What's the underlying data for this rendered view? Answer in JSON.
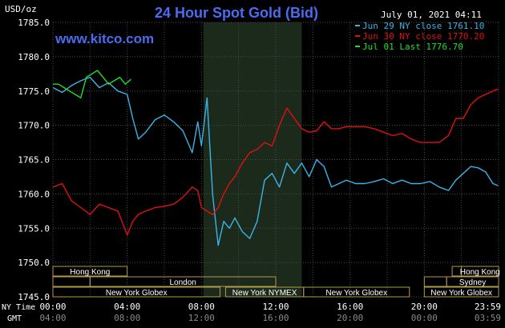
{
  "header": {
    "unit": "USD/oz",
    "title": "24 Hour Spot Gold (Bid)",
    "timestamp": "July 01, 2021 04:11",
    "watermark": "www.kitco.com"
  },
  "legend": [
    {
      "text": "Jun 29 NY close 1761.10",
      "color": "#3ab4e6"
    },
    {
      "text": "Jun 30 NY close 1770.20",
      "color": "#e01010"
    },
    {
      "text": "Jul 01 Last 1776.70",
      "color": "#22dd22"
    }
  ],
  "colors": {
    "background": "#000000",
    "grid": "#4a4a4a",
    "axis_text": "#ffffff",
    "title": "#4a6cf0",
    "watermark": "#4a6cf0",
    "highlight_band": "#1c2a1c",
    "session_box": "#b39a4c",
    "session_text": "#ffffff"
  },
  "sessions": [
    {
      "label": "Hong Kong",
      "row": 0,
      "start": 0,
      "end": 4
    },
    {
      "label": "London",
      "row": 1,
      "start": 2,
      "end": 12
    },
    {
      "label": "New York Globex",
      "row": 2,
      "start": 0,
      "end": 9
    },
    {
      "label": "New York NYMEX",
      "row": 2,
      "start": 9.3,
      "end": 13.5
    },
    {
      "label": "New York Globex",
      "row": 2,
      "start": 13.5,
      "end": 19.2
    },
    {
      "label": "Hong Kong",
      "row": 0,
      "start": 22,
      "end": 24
    },
    {
      "label": "Sydney",
      "row": 1,
      "start": 21.2,
      "end": 24
    },
    {
      "label": "New York Globex",
      "row": 2,
      "start": 20,
      "end": 24
    }
  ],
  "extra_boxes": [
    {
      "row": 1,
      "start": 0,
      "end": 2
    },
    {
      "row": 0,
      "start": 21.5,
      "end": 24
    },
    {
      "row": 1,
      "start": 20,
      "end": 21.2
    }
  ],
  "x_axis": {
    "ny_label": "NY Time",
    "gmt_label": "GMT",
    "ny_ticks": [
      "00:00",
      "04:00",
      "08:00",
      "12:00",
      "16:00",
      "20:00",
      "23:59"
    ],
    "gmt_ticks": [
      "04:00",
      "08:00",
      "12:00",
      "16:00",
      "20:00",
      "00:00",
      "03:59"
    ]
  },
  "chart_data": {
    "type": "line",
    "title": "24 Hour Spot Gold (Bid)",
    "ylabel": "USD/oz",
    "ylim": [
      1745,
      1785
    ],
    "yticks": [
      1745,
      1750,
      1755,
      1760,
      1765,
      1770,
      1775,
      1780,
      1785
    ],
    "ytick_labels": [
      "1745.0",
      "1750.0",
      "1755.0",
      "1760.0",
      "1765.0",
      "1770.0",
      "1775.0",
      "1780.0",
      "1785.0"
    ],
    "xlim_hours": [
      0,
      24
    ],
    "highlight_hours": [
      8.1,
      13.4
    ],
    "grid": true,
    "legend_position": "top-right",
    "series": [
      {
        "name": "Jun 29 NY close 1761.10",
        "color": "#3ab4e6",
        "x": [
          0,
          0.5,
          1,
          1.5,
          2,
          2.5,
          3,
          3.5,
          4,
          4.3,
          4.6,
          5,
          5.5,
          6,
          6.5,
          7,
          7.5,
          7.8,
          8,
          8.3,
          8.6,
          8.9,
          9.2,
          9.5,
          9.8,
          10.2,
          10.6,
          11,
          11.4,
          11.8,
          12.2,
          12.6,
          13,
          13.4,
          13.8,
          14.2,
          14.6,
          15,
          15.4,
          15.8,
          16.3,
          16.8,
          17.3,
          17.8,
          18.3,
          18.8,
          19.3,
          19.8,
          20.3,
          20.8,
          21.3,
          21.7,
          22.1,
          22.5,
          22.9,
          23.3,
          23.7,
          23.98
        ],
        "y": [
          1775.5,
          1774.8,
          1775.8,
          1776.5,
          1777.0,
          1775.5,
          1776.2,
          1775.0,
          1774.5,
          1771.0,
          1768.0,
          1769.0,
          1770.8,
          1771.5,
          1770.5,
          1769.2,
          1766.0,
          1770.5,
          1767.0,
          1774.0,
          1760.0,
          1752.5,
          1756.0,
          1755.0,
          1756.5,
          1754.5,
          1753.5,
          1756.0,
          1762.0,
          1763.0,
          1761.0,
          1764.5,
          1763.0,
          1764.5,
          1762.5,
          1765.0,
          1764.0,
          1761.0,
          1761.5,
          1762.0,
          1761.5,
          1761.5,
          1761.8,
          1762.2,
          1761.5,
          1762.0,
          1761.5,
          1761.5,
          1761.8,
          1761.0,
          1760.5,
          1762.0,
          1763.0,
          1764.0,
          1763.8,
          1763.2,
          1761.5,
          1761.2
        ]
      },
      {
        "name": "Jun 30 NY close 1770.20",
        "color": "#e01010",
        "x": [
          0,
          0.5,
          1,
          1.5,
          2,
          2.5,
          3,
          3.5,
          4,
          4.3,
          4.6,
          5,
          5.5,
          6,
          6.5,
          7,
          7.5,
          7.8,
          8,
          8.3,
          8.6,
          8.9,
          9.2,
          9.5,
          9.8,
          10.2,
          10.6,
          11,
          11.4,
          11.8,
          12.2,
          12.6,
          13,
          13.4,
          13.8,
          14.2,
          14.6,
          15,
          15.4,
          15.8,
          16.3,
          16.8,
          17.3,
          17.8,
          18.3,
          18.8,
          19.3,
          19.8,
          20.3,
          20.8,
          21.3,
          21.7,
          22.1,
          22.5,
          22.9,
          23.3,
          23.7,
          23.98
        ],
        "y": [
          1761.0,
          1761.5,
          1759.0,
          1758.0,
          1757.0,
          1758.5,
          1758.0,
          1757.5,
          1754.0,
          1756.0,
          1757.0,
          1757.5,
          1758.0,
          1758.2,
          1758.5,
          1759.5,
          1761.0,
          1760.5,
          1758.0,
          1757.5,
          1757.0,
          1758.0,
          1760.0,
          1761.5,
          1762.5,
          1764.5,
          1766.0,
          1766.5,
          1767.5,
          1767.0,
          1770.0,
          1772.5,
          1771.0,
          1769.5,
          1769.0,
          1769.2,
          1770.5,
          1769.5,
          1769.5,
          1769.8,
          1769.8,
          1769.8,
          1769.5,
          1769.0,
          1768.5,
          1768.8,
          1768.0,
          1767.5,
          1767.5,
          1767.5,
          1768.5,
          1771.0,
          1771.0,
          1773.0,
          1774.0,
          1774.5,
          1775.0,
          1775.3
        ]
      },
      {
        "name": "Jul 01 Last 1776.70",
        "color": "#22dd22",
        "x": [
          0,
          0.3,
          0.6,
          0.9,
          1.2,
          1.5,
          1.8,
          2.1,
          2.4,
          2.7,
          3.0,
          3.3,
          3.6,
          3.9,
          4.2
        ],
        "y": [
          1776.0,
          1776.0,
          1775.5,
          1775.0,
          1774.5,
          1774.0,
          1777.0,
          1777.5,
          1778.0,
          1777.0,
          1776.0,
          1776.5,
          1777.0,
          1776.0,
          1776.7
        ]
      }
    ]
  }
}
